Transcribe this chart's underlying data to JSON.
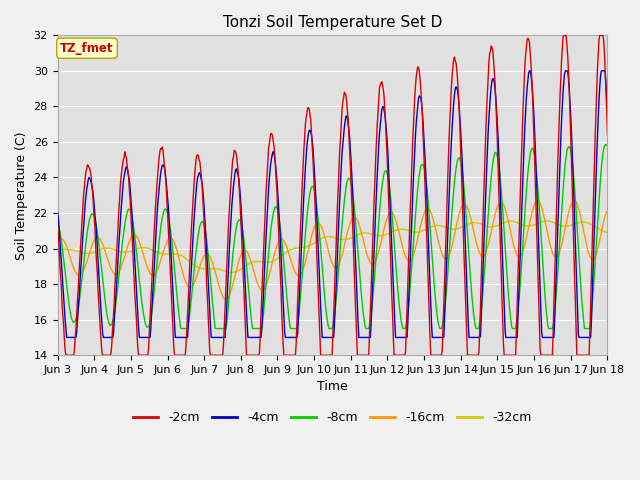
{
  "title": "Tonzi Soil Temperature Set D",
  "xlabel": "Time",
  "ylabel": "Soil Temperature (C)",
  "ylim": [
    14,
    32
  ],
  "yticks": [
    14,
    16,
    18,
    20,
    22,
    24,
    26,
    28,
    30,
    32
  ],
  "xtick_labels": [
    "Jun 3",
    "Jun 4",
    "Jun 5",
    "Jun 6",
    "Jun 7",
    "Jun 8",
    "Jun 9",
    "Jun 10",
    "Jun 11",
    "Jun 12",
    "Jun 13",
    "Jun 14",
    "Jun 15",
    "Jun 16",
    "Jun 17",
    "Jun 18"
  ],
  "annotation_text": "TZ_fmet",
  "annotation_color": "#cc0000",
  "annotation_bg": "#ffffcc",
  "colors": {
    "-2cm": "#dd0000",
    "-4cm": "#0000cc",
    "-8cm": "#00cc00",
    "-16cm": "#ff9900",
    "-32cm": "#cccc00"
  },
  "legend_labels": [
    "-2cm",
    "-4cm",
    "-8cm",
    "-16cm",
    "-32cm"
  ],
  "figsize": [
    6.4,
    4.8
  ],
  "dpi": 100
}
